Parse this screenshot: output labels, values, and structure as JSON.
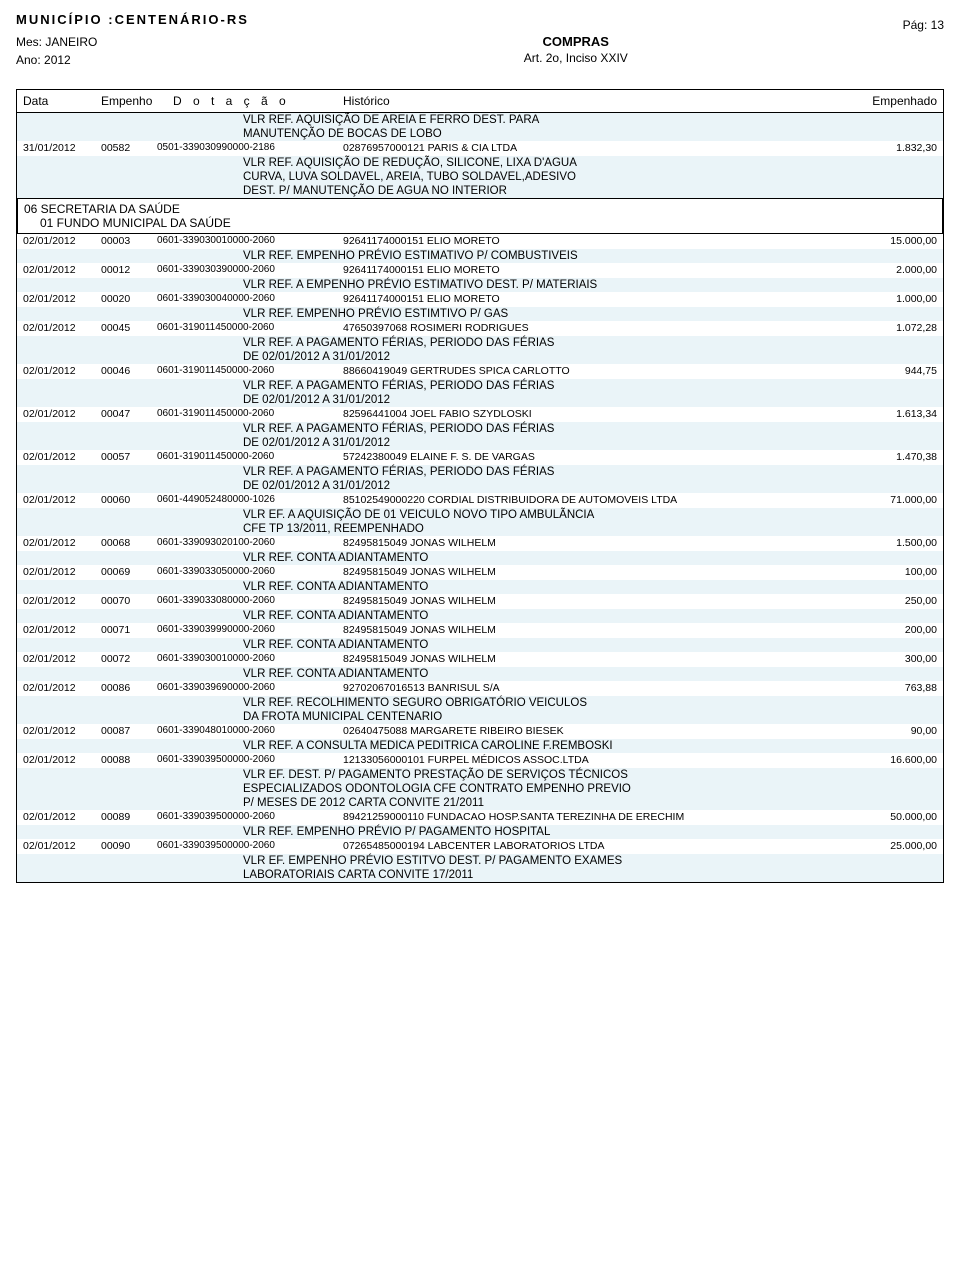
{
  "header": {
    "municipio_label": "MUNICÍPIO :",
    "municipio": "CENTENÁRIO-RS",
    "mes_label": "Mes:",
    "mes": "JANEIRO",
    "ano_label": "Ano:",
    "ano": "2012",
    "compras": "COMPRAS",
    "art": "Art. 2o, Inciso XXIV",
    "pag_label": "Pág:",
    "pag": "13"
  },
  "columns": {
    "data": "Data",
    "empenho": "Empenho",
    "dotacao": "D o t a ç ã o",
    "historico": "Histórico",
    "empenhado": "Empenhado"
  },
  "section": {
    "line1": "06 SECRETARIA DA SAÚDE",
    "line2": "01 FUNDO MUNICIPAL DA SAÚDE"
  },
  "pre_desc": [
    "VLR REF. AQUISIÇÃO DE AREIA E FERRO DEST. PARA",
    "MANUTENÇÃO DE BOCAS DE LOBO"
  ],
  "pre_row": {
    "data": "31/01/2012",
    "emp": "00582",
    "dot": "0501-339030990000-2186",
    "hist": "02876957000121 PARIS & CIA LTDA",
    "val": "1.832,30"
  },
  "pre_desc2": [
    "VLR REF. AQUISIÇÃO DE REDUÇÃO, SILICONE, LIXA D'AGUA",
    "CURVA, LUVA SOLDAVEL, AREIA, TUBO SOLDAVEL,ADESIVO",
    "DEST. P/ MANUTENÇÃO DE AGUA NO INTERIOR"
  ],
  "rows": [
    {
      "type": "data",
      "alt": false,
      "data": "02/01/2012",
      "emp": "00003",
      "dot": "0601-339030010000-2060",
      "hist": "92641174000151 ELIO MORETO",
      "val": "15.000,00"
    },
    {
      "type": "desc",
      "alt": true,
      "lines": [
        "VLR REF. EMPENHO PRÉVIO ESTIMATIVO P/ COMBUSTIVEIS"
      ]
    },
    {
      "type": "data",
      "alt": false,
      "data": "02/01/2012",
      "emp": "00012",
      "dot": "0601-339030390000-2060",
      "hist": "92641174000151 ELIO MORETO",
      "val": "2.000,00"
    },
    {
      "type": "desc",
      "alt": true,
      "lines": [
        "VLR REF. A EMPENHO PRÉVIO ESTIMATIVO DEST. P/ MATERIAIS"
      ]
    },
    {
      "type": "data",
      "alt": false,
      "data": "02/01/2012",
      "emp": "00020",
      "dot": "0601-339030040000-2060",
      "hist": "92641174000151 ELIO MORETO",
      "val": "1.000,00"
    },
    {
      "type": "desc",
      "alt": true,
      "lines": [
        "VLR REF. EMPENHO PRÉVIO ESTIMTIVO P/ GAS"
      ]
    },
    {
      "type": "data",
      "alt": false,
      "data": "02/01/2012",
      "emp": "00045",
      "dot": "0601-319011450000-2060",
      "hist": "47650397068 ROSIMERI RODRIGUES",
      "val": "1.072,28"
    },
    {
      "type": "desc",
      "alt": true,
      "lines": [
        "VLR REF. A PAGAMENTO FÉRIAS, PERIODO DAS FÉRIAS",
        "DE 02/01/2012 A 31/01/2012"
      ]
    },
    {
      "type": "data",
      "alt": false,
      "data": "02/01/2012",
      "emp": "00046",
      "dot": "0601-319011450000-2060",
      "hist": "88660419049 GERTRUDES  SPICA CARLOTTO",
      "val": "944,75"
    },
    {
      "type": "desc",
      "alt": true,
      "lines": [
        "VLR REF. A PAGAMENTO FÉRIAS, PERIODO DAS FÉRIAS",
        "DE 02/01/2012 A 31/01/2012"
      ]
    },
    {
      "type": "data",
      "alt": false,
      "data": "02/01/2012",
      "emp": "00047",
      "dot": "0601-319011450000-2060",
      "hist": "82596441004 JOEL FABIO SZYDLOSKI",
      "val": "1.613,34"
    },
    {
      "type": "desc",
      "alt": true,
      "lines": [
        "VLR REF. A PAGAMENTO FÉRIAS, PERIODO DAS FÉRIAS",
        "DE 02/01/2012 A 31/01/2012"
      ]
    },
    {
      "type": "data",
      "alt": false,
      "data": "02/01/2012",
      "emp": "00057",
      "dot": "0601-319011450000-2060",
      "hist": "57242380049 ELAINE F. S. DE  VARGAS",
      "val": "1.470,38"
    },
    {
      "type": "desc",
      "alt": true,
      "lines": [
        "VLR REF. A PAGAMENTO FÉRIAS, PERIODO DAS FÉRIAS",
        "DE 02/01/2012 A 31/01/2012"
      ]
    },
    {
      "type": "data",
      "alt": false,
      "data": "02/01/2012",
      "emp": "00060",
      "dot": "0601-449052480000-1026",
      "hist": "85102549000220 CORDIAL DISTRIBUIDORA DE AUTOMOVEIS LTDA",
      "val": "71.000,00"
    },
    {
      "type": "desc",
      "alt": true,
      "lines": [
        "VLR EF. A AQUISIÇÃO DE 01 VEICULO NOVO TIPO AMBULÃNCIA",
        "CFE TP 13/2011, REEMPENHADO"
      ]
    },
    {
      "type": "data",
      "alt": false,
      "data": "02/01/2012",
      "emp": "00068",
      "dot": "0601-339093020100-2060",
      "hist": "82495815049 JONAS WILHELM",
      "val": "1.500,00"
    },
    {
      "type": "desc",
      "alt": true,
      "lines": [
        "VLR REF. CONTA ADIANTAMENTO"
      ]
    },
    {
      "type": "data",
      "alt": false,
      "data": "02/01/2012",
      "emp": "00069",
      "dot": "0601-339033050000-2060",
      "hist": "82495815049 JONAS WILHELM",
      "val": "100,00"
    },
    {
      "type": "desc",
      "alt": true,
      "lines": [
        "VLR REF. CONTA ADIANTAMENTO"
      ]
    },
    {
      "type": "data",
      "alt": false,
      "data": "02/01/2012",
      "emp": "00070",
      "dot": "0601-339033080000-2060",
      "hist": "82495815049 JONAS WILHELM",
      "val": "250,00"
    },
    {
      "type": "desc",
      "alt": true,
      "lines": [
        "VLR REF. CONTA ADIANTAMENTO"
      ]
    },
    {
      "type": "data",
      "alt": false,
      "data": "02/01/2012",
      "emp": "00071",
      "dot": "0601-339039990000-2060",
      "hist": "82495815049 JONAS WILHELM",
      "val": "200,00"
    },
    {
      "type": "desc",
      "alt": true,
      "lines": [
        "VLR REF. CONTA ADIANTAMENTO"
      ]
    },
    {
      "type": "data",
      "alt": false,
      "data": "02/01/2012",
      "emp": "00072",
      "dot": "0601-339030010000-2060",
      "hist": "82495815049 JONAS WILHELM",
      "val": "300,00"
    },
    {
      "type": "desc",
      "alt": true,
      "lines": [
        "VLR REF. CONTA ADIANTAMENTO"
      ]
    },
    {
      "type": "data",
      "alt": false,
      "data": "02/01/2012",
      "emp": "00086",
      "dot": "0601-339039690000-2060",
      "hist": "92702067016513 BANRISUL S/A",
      "val": "763,88"
    },
    {
      "type": "desc",
      "alt": true,
      "lines": [
        "VLR REF. RECOLHIMENTO SEGURO OBRIGATÓRIO VEICULOS",
        "DA FROTA MUNICIPAL CENTENARIO"
      ]
    },
    {
      "type": "data",
      "alt": false,
      "data": "02/01/2012",
      "emp": "00087",
      "dot": "0601-339048010000-2060",
      "hist": "02640475088 MARGARETE RIBEIRO BIESEK",
      "val": "90,00"
    },
    {
      "type": "desc",
      "alt": true,
      "lines": [
        "VLR REF. A CONSULTA MEDICA PEDITRICA CAROLINE F.REMBOSKI"
      ]
    },
    {
      "type": "data",
      "alt": false,
      "data": "02/01/2012",
      "emp": "00088",
      "dot": "0601-339039500000-2060",
      "hist": "12133056000101 FURPEL MÉDICOS ASSOC.LTDA",
      "val": "16.600,00"
    },
    {
      "type": "desc",
      "alt": true,
      "lines": [
        "VLR EF. DEST. P/ PAGAMENTO PRESTAÇÃO DE SERVIÇOS TÉCNICOS",
        "ESPECIALIZADOS ODONTOLOGIA CFE CONTRATO EMPENHO PREVIO",
        "P/ MESES DE 2012 CARTA CONVITE 21/2011"
      ]
    },
    {
      "type": "data",
      "alt": false,
      "data": "02/01/2012",
      "emp": "00089",
      "dot": "0601-339039500000-2060",
      "hist": "89421259000110 FUNDACAO HOSP.SANTA TEREZINHA DE ERECHIM",
      "val": "50.000,00"
    },
    {
      "type": "desc",
      "alt": true,
      "lines": [
        "VLR REF. EMPENHO PRÉVIO P/ PAGAMENTO HOSPITAL"
      ]
    },
    {
      "type": "data",
      "alt": false,
      "data": "02/01/2012",
      "emp": "00090",
      "dot": "0601-339039500000-2060",
      "hist": "07265485000194 LABCENTER LABORATORIOS LTDA",
      "val": "25.000,00"
    },
    {
      "type": "desc",
      "alt": true,
      "lines": [
        "VLR EF. EMPENHO PRÉVIO ESTITVO DEST. P/ PAGAMENTO EXAMES",
        "LABORATORIAIS CARTA CONVITE 17/2011"
      ]
    }
  ]
}
